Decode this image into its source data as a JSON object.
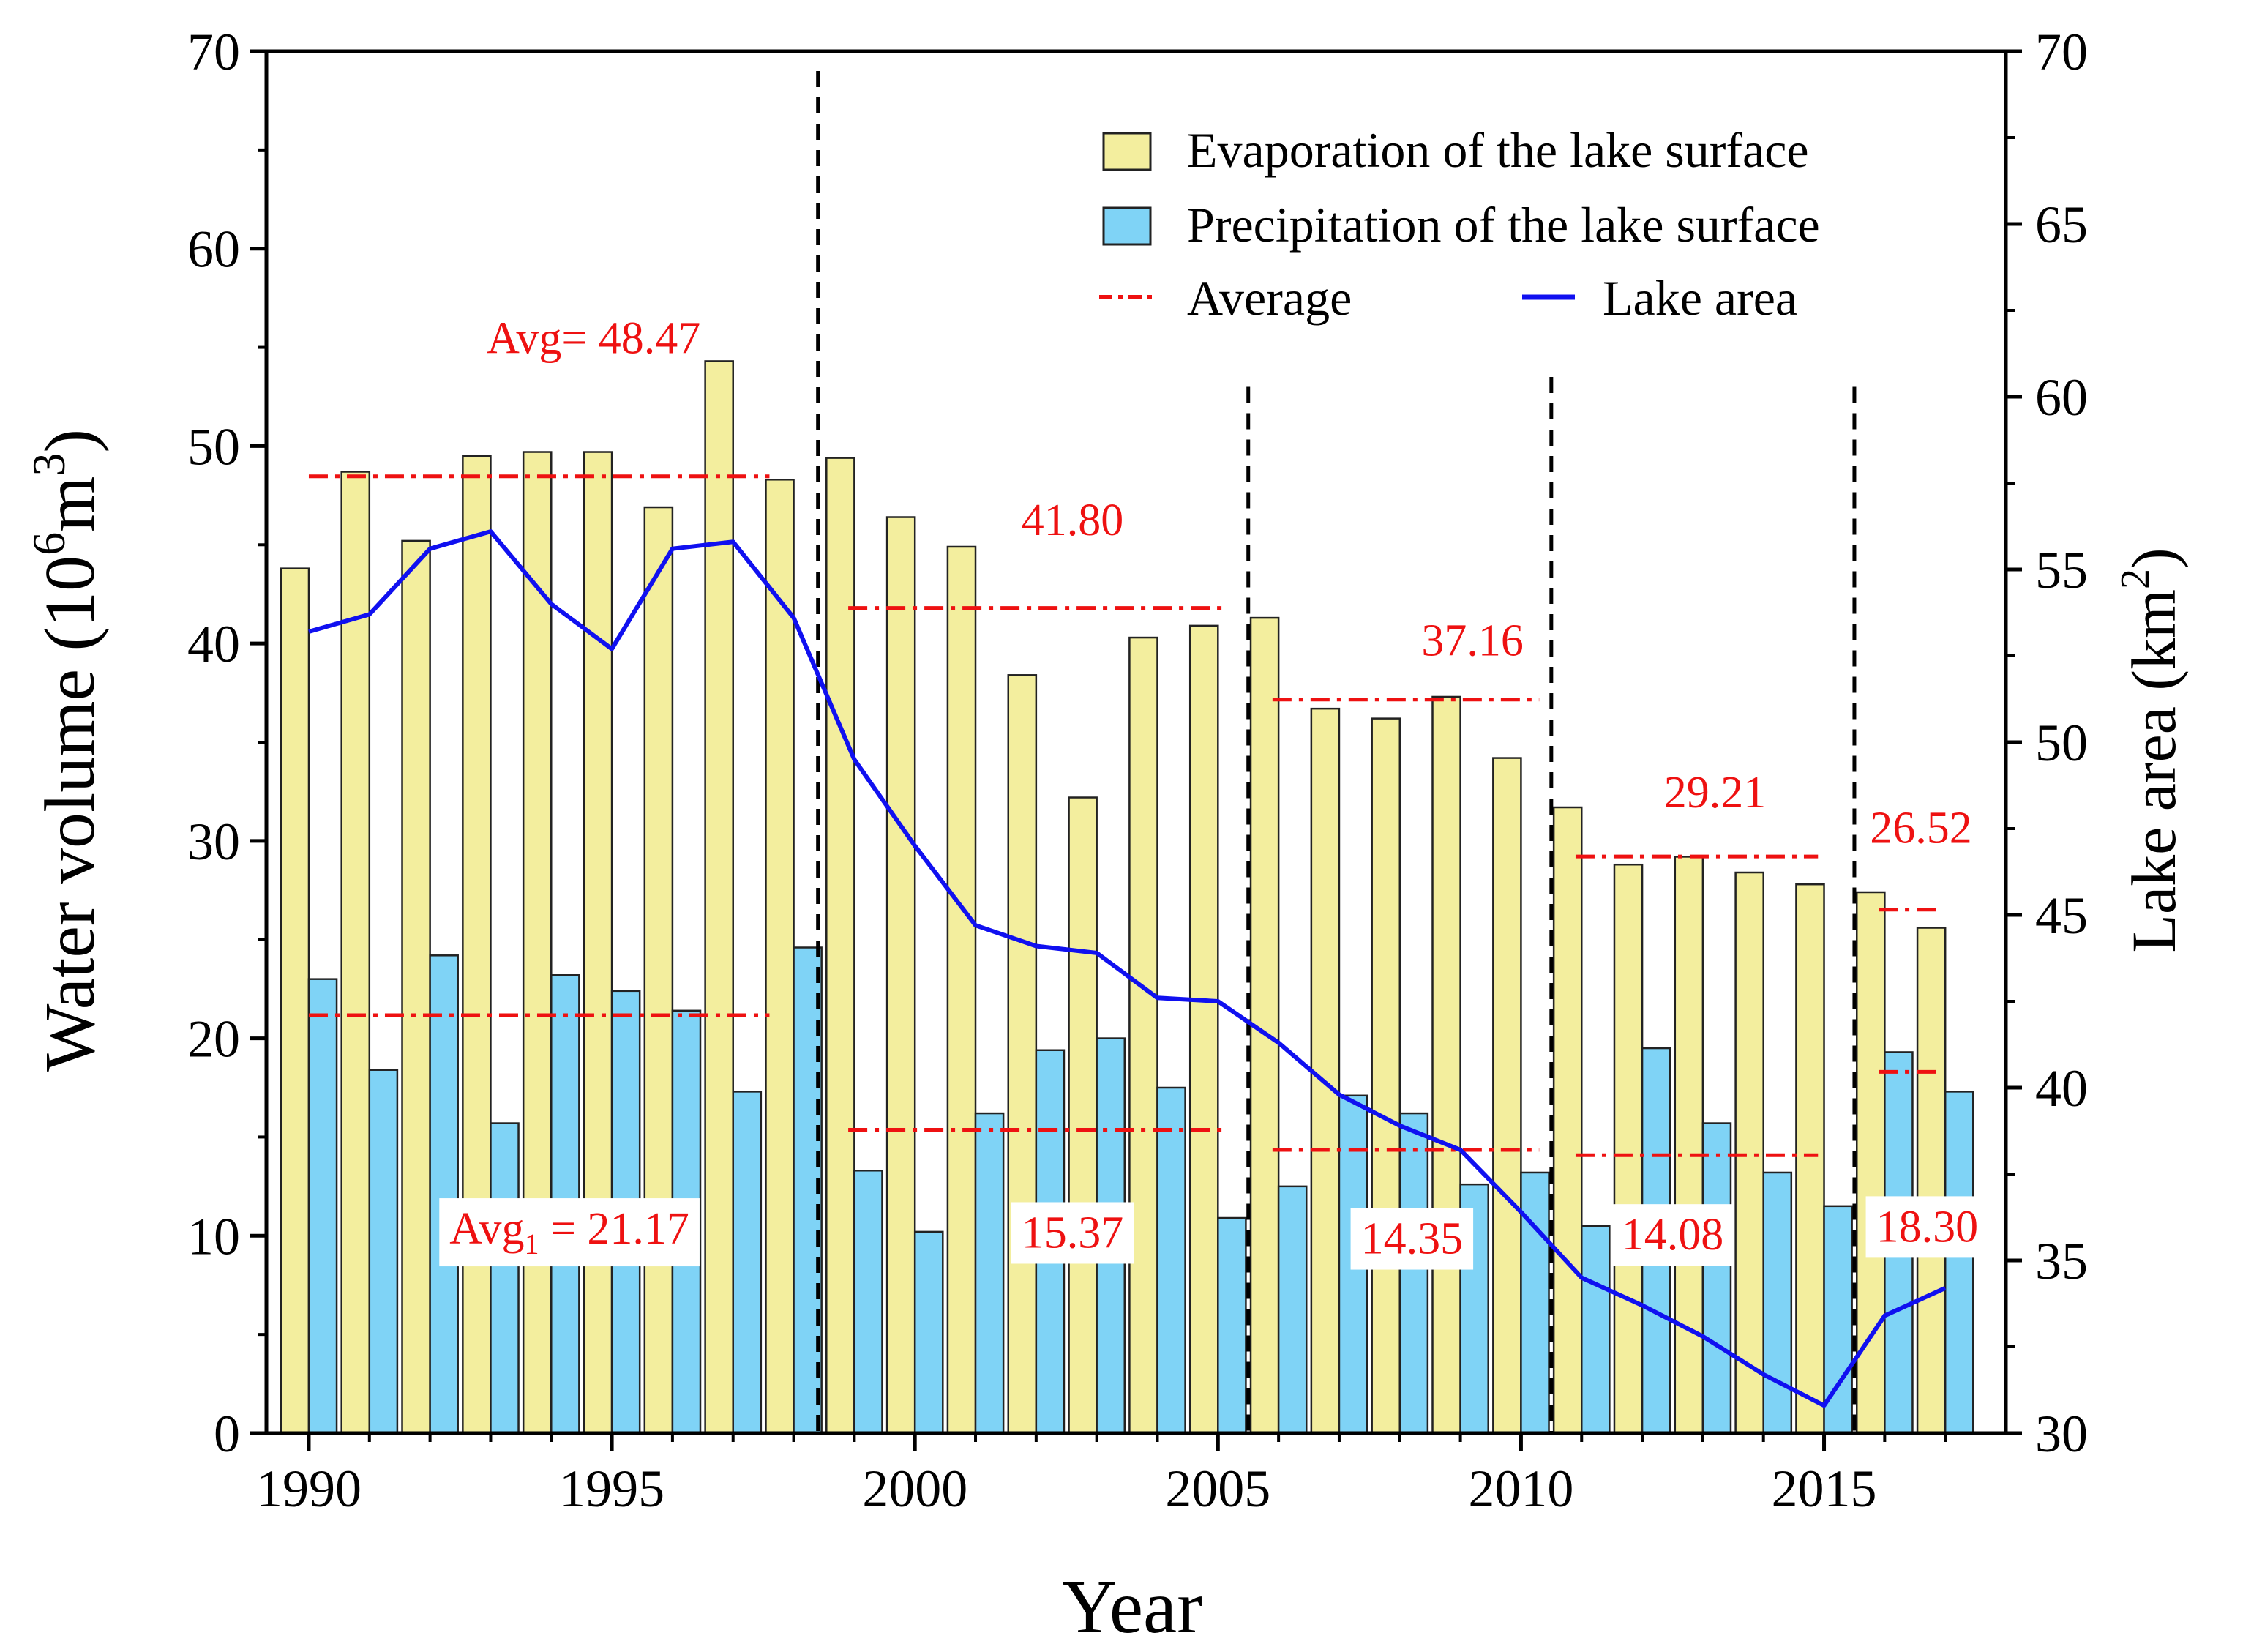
{
  "chart_data": {
    "type": "bar",
    "years": [
      1990,
      1991,
      1992,
      1993,
      1994,
      1995,
      1996,
      1997,
      1998,
      1999,
      2000,
      2001,
      2002,
      2003,
      2004,
      2005,
      2006,
      2007,
      2008,
      2009,
      2010,
      2011,
      2012,
      2013,
      2014,
      2015,
      2016,
      2017
    ],
    "series": [
      {
        "name": "Evaporation of the lake surface",
        "kind": "bar",
        "axis": "left",
        "color": "#f3ee9e",
        "values": [
          43.8,
          48.7,
          45.2,
          49.5,
          49.7,
          49.7,
          46.9,
          54.3,
          48.3,
          49.4,
          46.4,
          44.9,
          38.4,
          32.2,
          40.3,
          40.9,
          41.3,
          36.7,
          36.2,
          37.3,
          34.2,
          31.7,
          28.8,
          29.2,
          28.4,
          27.8,
          27.4,
          25.6
        ]
      },
      {
        "name": "Precipitation of the lake surface",
        "kind": "bar",
        "axis": "right-slot",
        "color": "#7fd3f6",
        "values": [
          23.0,
          18.4,
          24.2,
          15.7,
          23.2,
          22.4,
          21.4,
          17.3,
          24.6,
          13.3,
          10.2,
          16.2,
          19.4,
          20.0,
          17.5,
          10.9,
          12.5,
          17.1,
          16.2,
          12.6,
          13.2,
          10.5,
          19.5,
          15.7,
          13.2,
          11.5,
          19.3,
          17.3
        ]
      },
      {
        "name": "Lake area",
        "kind": "line",
        "axis": "right",
        "color": "#1010f0",
        "values": [
          53.2,
          53.7,
          55.6,
          56.1,
          54.0,
          52.7,
          55.6,
          55.8,
          53.6,
          49.5,
          47.0,
          44.7,
          44.1,
          43.9,
          42.6,
          42.5,
          41.3,
          39.8,
          38.9,
          38.2,
          36.4,
          34.5,
          33.7,
          32.8,
          31.7,
          30.8,
          33.4,
          34.2
        ]
      }
    ],
    "averages": [
      {
        "series": "Evaporation of the lake surface",
        "from": 1990,
        "to": 1997.6,
        "value": 48.47,
        "label_prefix": "Avg= ",
        "label": "48.47",
        "label_x": 1994.7,
        "label_y": 54.7
      },
      {
        "series": "Evaporation of the lake surface",
        "from": 1998.9,
        "to": 2005.1,
        "value": 41.8,
        "label_prefix": "",
        "label": "41.80",
        "label_x": 2002.6,
        "label_y": 45.5
      },
      {
        "series": "Evaporation of the lake surface",
        "from": 2005.9,
        "to": 2010.3,
        "value": 37.16,
        "label_prefix": "",
        "label": "37.16",
        "label_x": 2009.2,
        "label_y": 39.4
      },
      {
        "series": "Evaporation of the lake surface",
        "from": 2010.9,
        "to": 2014.9,
        "value": 29.21,
        "label_prefix": "",
        "label": "29.21",
        "label_x": 2013.2,
        "label_y": 31.7
      },
      {
        "series": "Evaporation of the lake surface",
        "from": 2015.9,
        "to": 2016.9,
        "value": 26.52,
        "label_prefix": "",
        "label": "26.52",
        "label_x": 2016.6,
        "label_y": 29.9
      },
      {
        "series": "Precipitation of the lake surface",
        "from": 1990,
        "to": 1997.6,
        "value": 21.17,
        "label_prefix": "Avg",
        "label_sub": "1",
        "label": " = 21.17",
        "label_x": 1994.3,
        "label_y": 9.6,
        "boxed": true
      },
      {
        "series": "Precipitation of the lake surface",
        "from": 1998.9,
        "to": 2005.1,
        "value": 15.37,
        "label_prefix": "",
        "label": "15.37",
        "label_x": 2002.6,
        "label_y": 9.4,
        "boxed": true
      },
      {
        "series": "Precipitation of the lake surface",
        "from": 2005.9,
        "to": 2010.3,
        "value": 14.35,
        "label_prefix": "",
        "label": "14.35",
        "label_x": 2008.2,
        "label_y": 9.1,
        "boxed": true
      },
      {
        "series": "Precipitation of the lake surface",
        "from": 2010.9,
        "to": 2014.9,
        "value": 14.08,
        "label_prefix": "",
        "label": "14.08",
        "label_x": 2012.5,
        "label_y": 9.3,
        "boxed": true
      },
      {
        "series": "Precipitation of the lake surface",
        "from": 2015.9,
        "to": 2016.9,
        "value": 18.3,
        "label_prefix": "",
        "label": "18.30",
        "label_x": 2016.7,
        "label_y": 9.7,
        "boxed": true
      }
    ],
    "period_dividers": [
      {
        "x": 1998.4,
        "y_top": 69
      },
      {
        "x": 2005.5,
        "y_top": 53
      },
      {
        "x": 2010.5,
        "y_top": 53.5
      },
      {
        "x": 2015.5,
        "y_top": 53
      }
    ],
    "average_line_color": "#ee1111",
    "xlabel": "Year",
    "ylabel": "Water volume (10",
    "ylabel_sup1": "6",
    "ylabel_mid": "m",
    "ylabel_sup2": "3",
    "ylabel_end": ")",
    "y2label": "Lake area (km",
    "y2label_sup": "2",
    "y2label_end": ")",
    "xlim": [
      1989.3,
      2018.0
    ],
    "ylim": [
      0,
      70
    ],
    "y2lim": [
      30,
      70
    ],
    "xticks": [
      1990,
      1995,
      2000,
      2005,
      2010,
      2015
    ],
    "yticks": [
      0,
      10,
      20,
      30,
      40,
      50,
      60,
      70
    ],
    "y2ticks": [
      30,
      35,
      40,
      45,
      50,
      55,
      60,
      65,
      70
    ],
    "legend": {
      "position": "top-right",
      "items": [
        {
          "label": "Evaporation of the lake surface",
          "symbol": "bar",
          "color": "#f3ee9e"
        },
        {
          "label": "Precipitation of the lake surface",
          "symbol": "bar",
          "color": "#7fd3f6"
        },
        {
          "label": "Average",
          "symbol": "dashdot",
          "color": "#ee1111"
        },
        {
          "label": "Lake area",
          "symbol": "line",
          "color": "#1010f0"
        }
      ]
    }
  }
}
